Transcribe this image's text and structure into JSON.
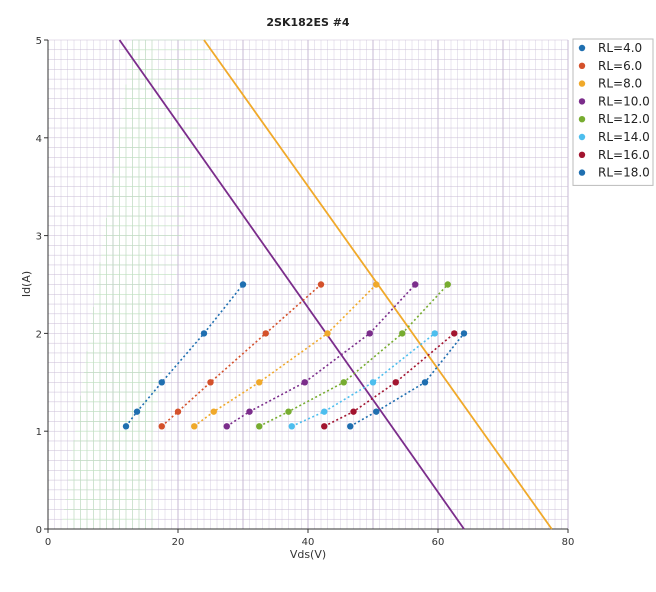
{
  "chart_data": {
    "type": "line",
    "title": "2SK182ES #4",
    "xlabel": "Vds(V)",
    "ylabel": "Id(A)",
    "xlim": [
      0,
      80
    ],
    "ylim": [
      0,
      5
    ],
    "x_ticks": [
      "0",
      "20",
      "40",
      "60",
      "80"
    ],
    "y_ticks": [
      "0",
      "1",
      "2",
      "3",
      "4",
      "5"
    ],
    "grid": true,
    "legend_position": "top-right",
    "series": [
      {
        "name": "RL=4.0",
        "color": "#1f6fb0",
        "points": [
          [
            12.0,
            1.05
          ],
          [
            13.7,
            1.2
          ],
          [
            17.5,
            1.5
          ],
          [
            24.0,
            2.0
          ],
          [
            30.0,
            2.5
          ]
        ]
      },
      {
        "name": "RL=6.0",
        "color": "#d4512b",
        "points": [
          [
            17.5,
            1.05
          ],
          [
            20.0,
            1.2
          ],
          [
            25.0,
            1.5
          ],
          [
            33.5,
            2.0
          ],
          [
            42.0,
            2.5
          ]
        ]
      },
      {
        "name": "RL=8.0",
        "color": "#f0a92a",
        "points": [
          [
            22.5,
            1.05
          ],
          [
            25.5,
            1.2
          ],
          [
            32.5,
            1.5
          ],
          [
            43.0,
            2.0
          ],
          [
            50.5,
            2.5
          ]
        ]
      },
      {
        "name": "RL=10.0",
        "color": "#7b2d8b",
        "points": [
          [
            27.5,
            1.05
          ],
          [
            31.0,
            1.2
          ],
          [
            39.5,
            1.5
          ],
          [
            49.5,
            2.0
          ],
          [
            56.5,
            2.5
          ]
        ]
      },
      {
        "name": "RL=12.0",
        "color": "#77ac30",
        "points": [
          [
            32.5,
            1.05
          ],
          [
            37.0,
            1.2
          ],
          [
            45.5,
            1.5
          ],
          [
            54.5,
            2.0
          ],
          [
            61.5,
            2.5
          ]
        ]
      },
      {
        "name": "RL=14.0",
        "color": "#4dbeee",
        "points": [
          [
            37.5,
            1.05
          ],
          [
            42.5,
            1.2
          ],
          [
            50.0,
            1.5
          ],
          [
            59.5,
            2.0
          ]
        ]
      },
      {
        "name": "RL=16.0",
        "color": "#a2142f",
        "points": [
          [
            42.5,
            1.05
          ],
          [
            47.0,
            1.2
          ],
          [
            53.5,
            1.5
          ],
          [
            62.5,
            2.0
          ]
        ]
      },
      {
        "name": "RL=18.0",
        "color": "#1f6fb0",
        "points": [
          [
            46.5,
            1.05
          ],
          [
            50.5,
            1.2
          ],
          [
            58.0,
            1.5
          ],
          [
            64.0,
            2.0
          ]
        ]
      }
    ],
    "load_lines": [
      {
        "color": "#7b2d8b",
        "points": [
          [
            11.0,
            5.0
          ],
          [
            64.0,
            0.0
          ]
        ]
      },
      {
        "color": "#f0a92a",
        "points": [
          [
            24.0,
            5.0
          ],
          [
            77.5,
            0.0
          ]
        ]
      }
    ]
  }
}
